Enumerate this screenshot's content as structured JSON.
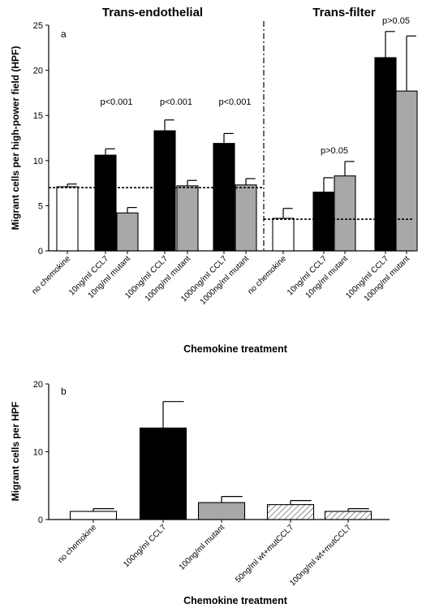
{
  "chart_data": [
    {
      "type": "bar",
      "panel_label": "a",
      "group_titles": [
        "Trans-endothelial",
        "Trans-filter"
      ],
      "ylabel": "Migrant cells per high-power field (HPF)",
      "xlabel": "Chemokine treatment",
      "ylim": [
        0,
        25
      ],
      "yticks": [
        0,
        5,
        10,
        15,
        20,
        25
      ],
      "categories": [
        "no chemokine",
        "10ng/ml CCL7",
        "10ng/ml mutant",
        "100ng/ml CCL7",
        "100ng/ml mutant",
        "1000ng/ml CCL7",
        "1000ng/ml mutant",
        "no chemokine",
        "10ng/ml CCL7",
        "10ng/ml mutant",
        "100ng/ml CCL7",
        "100ng/ml mutant"
      ],
      "values": [
        7.1,
        10.6,
        4.2,
        13.3,
        7.2,
        11.9,
        7.3,
        3.6,
        6.5,
        8.3,
        21.4,
        17.7
      ],
      "errors": [
        0.3,
        0.7,
        0.6,
        1.2,
        0.6,
        1.1,
        0.7,
        1.1,
        1.6,
        1.6,
        2.9,
        6.1
      ],
      "fills": [
        "white",
        "black",
        "gray",
        "black",
        "gray",
        "black",
        "gray",
        "white",
        "black",
        "gray",
        "black",
        "gray"
      ],
      "groups": [
        0,
        0,
        0,
        0,
        0,
        0,
        0,
        1,
        1,
        1,
        1,
        1
      ],
      "baselines": [
        {
          "group": 0,
          "y": 7.0
        },
        {
          "group": 1,
          "y": 3.5
        }
      ],
      "annotations": [
        {
          "text": "p<0.001",
          "bars": [
            1,
            2
          ],
          "y": 16.2
        },
        {
          "text": "p<0.001",
          "bars": [
            3,
            4
          ],
          "y": 16.2
        },
        {
          "text": "p<0.001",
          "bars": [
            5,
            6
          ],
          "y": 16.2
        },
        {
          "text": "p>0.05",
          "bars": [
            8,
            9
          ],
          "y": 10.8
        },
        {
          "text": "p>0.05",
          "bars": [
            10,
            11
          ],
          "y": 25.2
        }
      ]
    },
    {
      "type": "bar",
      "panel_label": "b",
      "ylabel": "Migrant cells per HPF",
      "xlabel": "Chemokine treatment",
      "ylim": [
        0,
        20
      ],
      "yticks": [
        0,
        10,
        20
      ],
      "categories": [
        "no chemokine",
        "100ng/ml CCL7",
        "100ng/ml mutant",
        "50ng/ml wt+mutCCL7",
        "100ng/ml wt+mutCCL7"
      ],
      "values": [
        1.2,
        13.5,
        2.5,
        2.2,
        1.2
      ],
      "errors": [
        0.4,
        3.9,
        0.9,
        0.6,
        0.4
      ],
      "fills": [
        "white",
        "black",
        "gray",
        "hatched",
        "hatched"
      ]
    }
  ],
  "colors": {
    "black": "#000000",
    "gray": "#a8a8a8",
    "white": "#ffffff"
  }
}
